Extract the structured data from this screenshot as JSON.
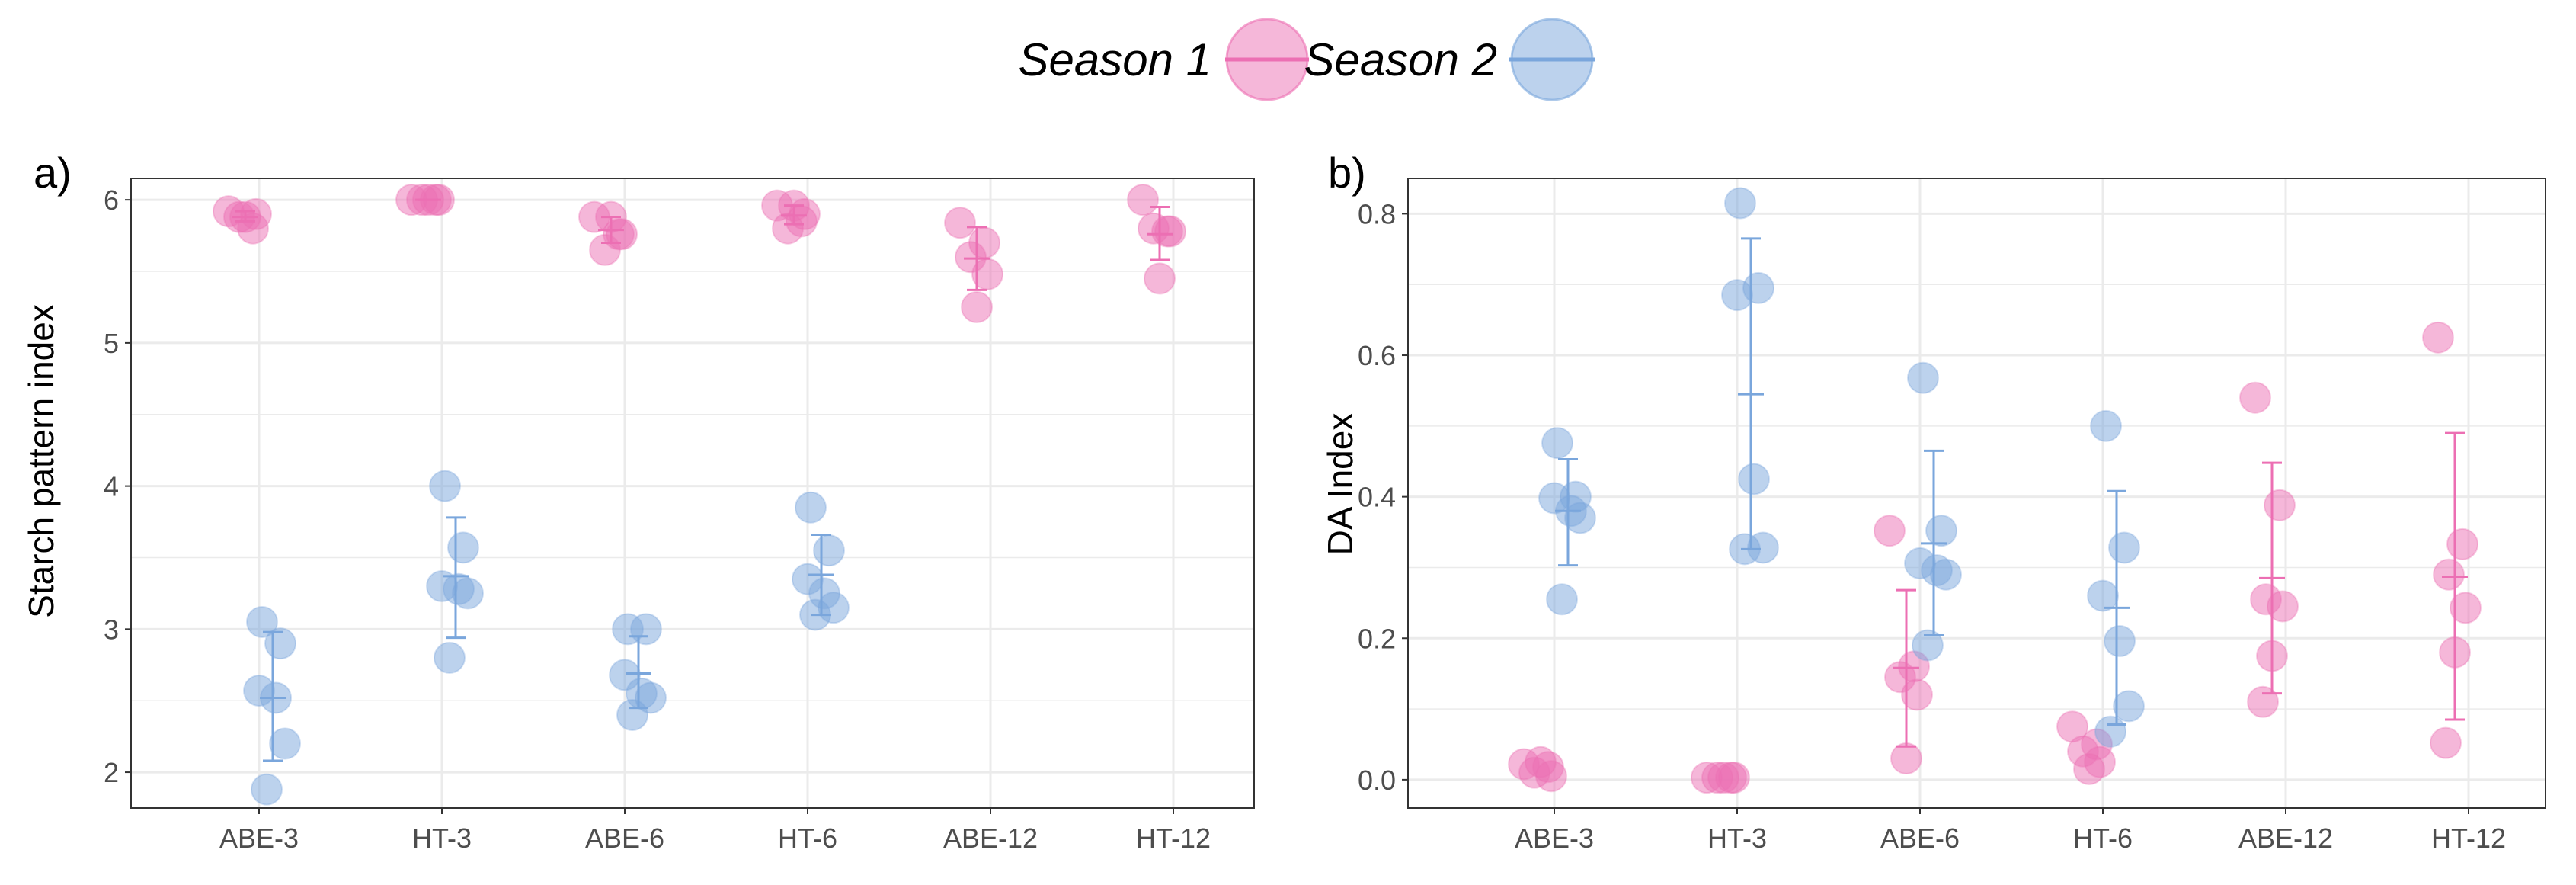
{
  "legend": {
    "entries": [
      {
        "label": "Season 1",
        "color": "#ec6fb3"
      },
      {
        "label": "Season 2",
        "color": "#7aa6dc"
      }
    ]
  },
  "colors": {
    "season1": "#ec6fb3",
    "season2": "#7aa6dc",
    "grid": "#ebebeb",
    "frame": "#333333"
  },
  "chart_data": [
    {
      "panel_label": "a)",
      "type": "scatter",
      "ylabel": "Starch pattern index",
      "xlabel": "",
      "grid": true,
      "ylim": [
        1.75,
        6.15
      ],
      "y_ticks": [
        2,
        3,
        4,
        5,
        6
      ],
      "y_tick_labels": [
        "2",
        "3",
        "4",
        "5",
        "6"
      ],
      "categories": [
        "ABE-3",
        "HT-3",
        "ABE-6",
        "HT-6",
        "ABE-12",
        "HT-12"
      ],
      "series": [
        {
          "name": "Season 1",
          "color": "#ec6fb3",
          "points": [
            [
              5.92,
              5.8,
              5.88,
              5.9,
              5.88
            ],
            [
              6.0,
              6.0,
              6.0,
              6.0,
              6.0
            ],
            [
              5.88,
              5.76,
              5.65,
              5.76,
              5.88
            ],
            [
              5.96,
              5.85,
              5.8,
              5.9,
              5.96
            ],
            [
              5.84,
              5.7,
              5.6,
              5.48,
              5.25
            ],
            [
              6.0,
              5.78,
              5.8,
              5.78,
              5.45
            ]
          ],
          "mean": [
            5.88,
            6.0,
            5.79,
            5.89,
            5.59,
            5.76
          ],
          "err_low": [
            5.85,
            6.0,
            5.7,
            5.83,
            5.37,
            5.58
          ],
          "err_high": [
            5.92,
            6.0,
            5.88,
            5.96,
            5.81,
            5.95
          ]
        },
        {
          "name": "Season 2",
          "color": "#7aa6dc",
          "points": [
            [
              3.05,
              2.9,
              2.57,
              2.52,
              2.2,
              1.88
            ],
            [
              4.0,
              3.57,
              3.3,
              3.28,
              3.25,
              2.8
            ],
            [
              3.0,
              3.0,
              2.68,
              2.55,
              2.52,
              2.4
            ],
            [
              3.85,
              3.55,
              3.35,
              3.25,
              3.15,
              3.1
            ],
            [],
            []
          ],
          "mean": [
            2.52,
            3.37,
            2.69,
            3.38,
            null,
            null
          ],
          "err_low": [
            2.08,
            2.94,
            2.45,
            3.1,
            null,
            null
          ],
          "err_high": [
            2.98,
            3.78,
            2.95,
            3.66,
            null,
            null
          ]
        }
      ]
    },
    {
      "panel_label": "b)",
      "type": "scatter",
      "ylabel": "DA Index",
      "xlabel": "",
      "grid": true,
      "ylim": [
        -0.04,
        0.85
      ],
      "y_ticks": [
        0.0,
        0.2,
        0.4,
        0.6,
        0.8
      ],
      "y_tick_labels": [
        "0.0",
        "0.2",
        "0.4",
        "0.6",
        "0.8"
      ],
      "categories": [
        "ABE-3",
        "HT-3",
        "ABE-6",
        "HT-6",
        "ABE-12",
        "HT-12"
      ],
      "series": [
        {
          "name": "Season 1",
          "color": "#ec6fb3",
          "points": [
            [
              0.022,
              0.018,
              0.01,
              0.005,
              0.025
            ],
            [
              0.003,
              0.003,
              0.003,
              0.003,
              0.003
            ],
            [
              0.352,
              0.16,
              0.145,
              0.12,
              0.03
            ],
            [
              0.075,
              0.05,
              0.04,
              0.025,
              0.015
            ],
            [
              0.54,
              0.388,
              0.255,
              0.245,
              0.175,
              0.11
            ],
            [
              0.625,
              0.333,
              0.29,
              0.243,
              0.18,
              0.052
            ]
          ],
          "mean": [
            null,
            null,
            0.158,
            null,
            0.285,
            0.287
          ],
          "err_low": [
            null,
            null,
            0.047,
            null,
            0.122,
            0.085
          ],
          "err_high": [
            null,
            null,
            0.268,
            null,
            0.448,
            0.49
          ]
        },
        {
          "name": "Season 2",
          "color": "#7aa6dc",
          "points": [
            [
              0.476,
              0.4,
              0.398,
              0.38,
              0.37,
              0.255
            ],
            [
              0.815,
              0.695,
              0.685,
              0.425,
              0.328,
              0.326
            ],
            [
              0.568,
              0.352,
              0.306,
              0.296,
              0.29,
              0.19
            ],
            [
              0.5,
              0.328,
              0.26,
              0.196,
              0.104,
              0.068
            ],
            [],
            []
          ],
          "mean": [
            0.38,
            0.545,
            0.334,
            0.243,
            null,
            null
          ],
          "err_low": [
            0.303,
            0.326,
            0.204,
            0.078,
            null,
            null
          ],
          "err_high": [
            0.453,
            0.765,
            0.465,
            0.408,
            null,
            null
          ]
        }
      ]
    }
  ]
}
